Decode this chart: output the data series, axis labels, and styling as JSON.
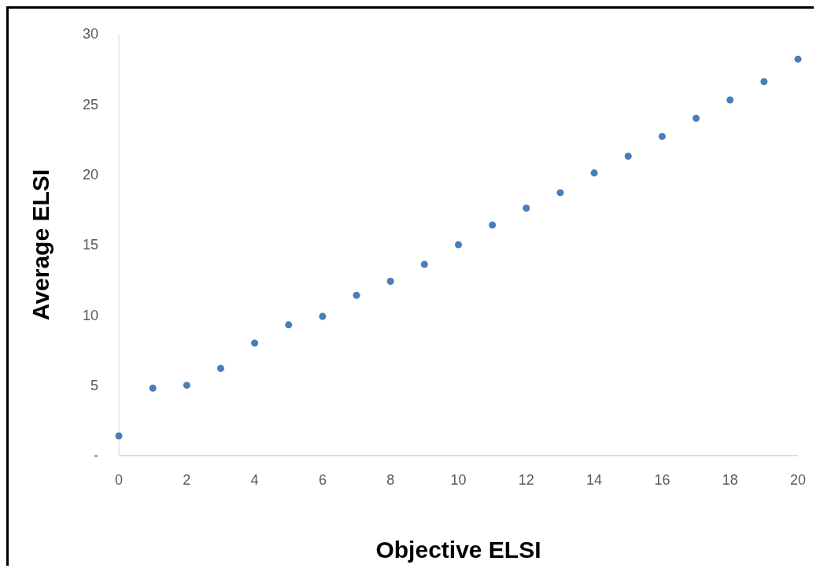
{
  "chart_data": {
    "type": "scatter",
    "xlabel": "Objective ELSI",
    "ylabel": "Average ELSI",
    "x": [
      0,
      1,
      2,
      3,
      4,
      5,
      6,
      7,
      8,
      9,
      10,
      11,
      12,
      13,
      14,
      15,
      16,
      17,
      18,
      19,
      20
    ],
    "values": [
      1.4,
      4.8,
      5.0,
      6.2,
      8.0,
      9.3,
      9.9,
      11.4,
      12.4,
      13.6,
      15.0,
      16.4,
      17.6,
      18.7,
      20.1,
      21.3,
      22.7,
      24.0,
      25.3,
      26.6,
      28.2
    ],
    "color": "#4a7ebb",
    "marker": "circle",
    "xlim": [
      0,
      20
    ],
    "xticks": [
      0,
      2,
      4,
      6,
      8,
      10,
      12,
      14,
      16,
      18,
      20
    ],
    "ylim": [
      0,
      30
    ],
    "yticks": [
      {
        "value": 0,
        "label": "-"
      },
      5,
      10,
      15,
      20,
      25,
      30
    ],
    "grid": false
  }
}
